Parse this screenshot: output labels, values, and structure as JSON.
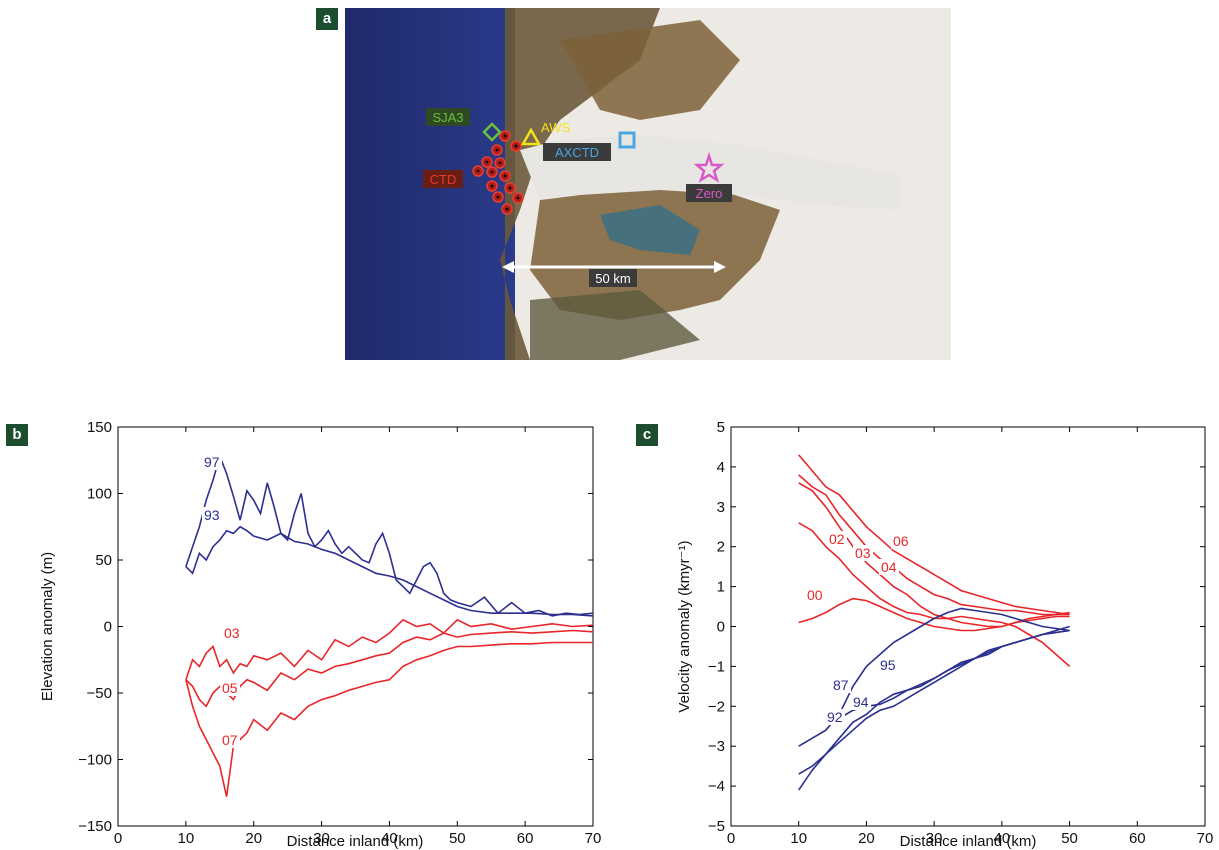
{
  "panels": {
    "a": "a",
    "b": "b",
    "c": "c"
  },
  "map": {
    "labels": {
      "sja3": "SJA3",
      "aws": "AWS",
      "axctd": "AXCTD",
      "ctd": "CTD",
      "zero": "Zero",
      "scale": "50 km"
    },
    "colors": {
      "sja3": "#6bbf3a",
      "aws": "#f2e21b",
      "axctd": "#4aa8e0",
      "ctd": "#e23a2a",
      "zero": "#d85ac8"
    }
  },
  "chart_data": [
    {
      "type": "line",
      "panel": "b",
      "xlabel": "Distance inland (km)",
      "ylabel": "Elevation anomaly (m)",
      "xlim": [
        0,
        70
      ],
      "ylim": [
        -150,
        150
      ],
      "xticks": [
        0,
        10,
        20,
        30,
        40,
        50,
        60,
        70
      ],
      "yticks": [
        -150,
        -100,
        -50,
        0,
        50,
        100,
        150
      ],
      "tick_labels_x": [
        "0",
        "10",
        "20",
        "30",
        "40",
        "50",
        "60",
        "70"
      ],
      "tick_labels_y": [
        "−150",
        "−100",
        "−50",
        "0",
        "50",
        "100",
        "150"
      ],
      "series": [
        {
          "name": "97",
          "color": "#2b2f8f",
          "x": [
            10,
            11,
            12,
            13,
            14,
            15,
            16,
            17,
            18,
            19,
            20,
            21,
            22,
            23,
            24,
            25,
            26,
            27,
            28,
            29,
            30,
            31,
            32,
            33,
            34,
            35,
            36,
            37,
            38,
            39,
            40,
            41,
            42,
            43,
            44,
            45,
            46,
            47,
            48,
            49,
            50,
            52,
            54,
            56,
            58,
            60,
            62,
            64,
            66,
            68,
            70
          ],
          "y": [
            45,
            60,
            75,
            95,
            110,
            128,
            115,
            98,
            80,
            102,
            95,
            85,
            108,
            90,
            70,
            65,
            85,
            100,
            70,
            60,
            65,
            72,
            62,
            55,
            60,
            55,
            50,
            48,
            62,
            70,
            55,
            35,
            30,
            25,
            35,
            45,
            48,
            40,
            25,
            20,
            18,
            15,
            22,
            10,
            18,
            10,
            12,
            8,
            10,
            9,
            10
          ]
        },
        {
          "name": "93",
          "color": "#2b2f8f",
          "x": [
            10,
            11,
            12,
            13,
            14,
            15,
            16,
            17,
            18,
            19,
            20,
            22,
            24,
            26,
            28,
            30,
            32,
            34,
            36,
            38,
            40,
            42,
            44,
            46,
            48,
            50,
            52,
            55,
            58,
            61,
            64,
            67,
            70
          ],
          "y": [
            45,
            40,
            55,
            50,
            60,
            65,
            72,
            70,
            75,
            72,
            68,
            65,
            70,
            64,
            62,
            58,
            55,
            50,
            45,
            40,
            38,
            35,
            30,
            25,
            20,
            15,
            12,
            10,
            10,
            10,
            9,
            9,
            8
          ]
        },
        {
          "name": "03",
          "color": "#e8262a",
          "x": [
            10,
            11,
            12,
            13,
            14,
            15,
            16,
            17,
            18,
            19,
            20,
            22,
            24,
            26,
            28,
            30,
            32,
            34,
            36,
            38,
            40,
            42,
            44,
            46,
            48,
            50,
            52,
            55,
            58,
            61,
            64,
            67,
            70
          ],
          "y": [
            -40,
            -25,
            -30,
            -20,
            -15,
            -30,
            -25,
            -35,
            -28,
            -30,
            -22,
            -25,
            -20,
            -30,
            -18,
            -25,
            -10,
            -15,
            -8,
            -12,
            -5,
            5,
            0,
            2,
            -5,
            5,
            0,
            2,
            -2,
            0,
            2,
            0,
            1
          ]
        },
        {
          "name": "05",
          "color": "#e8262a",
          "x": [
            10,
            11,
            12,
            13,
            14,
            15,
            16,
            17,
            18,
            19,
            20,
            22,
            24,
            26,
            28,
            30,
            32,
            34,
            36,
            38,
            40,
            42,
            44,
            46,
            48,
            50,
            52,
            55,
            58,
            61,
            64,
            67,
            70
          ],
          "y": [
            -40,
            -45,
            -55,
            -60,
            -50,
            -45,
            -50,
            -55,
            -45,
            -40,
            -42,
            -48,
            -35,
            -40,
            -32,
            -35,
            -30,
            -28,
            -25,
            -22,
            -20,
            -12,
            -8,
            -10,
            -5,
            -8,
            -6,
            -5,
            -4,
            -5,
            -4,
            -3,
            -4
          ]
        },
        {
          "name": "07",
          "color": "#e8262a",
          "x": [
            10,
            11,
            12,
            13,
            14,
            15,
            16,
            17,
            18,
            19,
            20,
            22,
            24,
            26,
            28,
            30,
            32,
            34,
            36,
            38,
            40,
            42,
            44,
            46,
            48,
            50,
            52,
            55,
            58,
            61,
            64,
            67,
            70
          ],
          "y": [
            -40,
            -60,
            -75,
            -85,
            -95,
            -105,
            -128,
            -90,
            -85,
            -80,
            -70,
            -78,
            -65,
            -70,
            -60,
            -55,
            -52,
            -48,
            -45,
            -42,
            -40,
            -30,
            -25,
            -22,
            -18,
            -15,
            -15,
            -14,
            -13,
            -13,
            -12,
            -12,
            -12
          ]
        }
      ],
      "annotations": [
        "97",
        "93",
        "03",
        "05",
        "07"
      ]
    },
    {
      "type": "line",
      "panel": "c",
      "xlabel": "Distance inland (km)",
      "ylabel": "Velocity anomaly (kmyr⁻¹)",
      "xlim": [
        0,
        70
      ],
      "ylim": [
        -5,
        5
      ],
      "xticks": [
        0,
        10,
        20,
        30,
        40,
        50,
        60,
        70
      ],
      "yticks": [
        -5,
        -4,
        -3,
        -2,
        -1,
        0,
        1,
        2,
        3,
        4,
        5
      ],
      "tick_labels_x": [
        "0",
        "10",
        "20",
        "30",
        "40",
        "50",
        "60",
        "70"
      ],
      "tick_labels_y": [
        "−5",
        "−4",
        "−3",
        "−2",
        "−1",
        "0",
        "1",
        "2",
        "3",
        "4",
        "5"
      ],
      "series": [
        {
          "name": "06",
          "color": "#e8262a",
          "x": [
            10,
            12,
            14,
            16,
            18,
            20,
            22,
            24,
            26,
            28,
            30,
            32,
            34,
            36,
            38,
            40,
            42,
            44,
            46,
            48,
            50
          ],
          "y": [
            4.3,
            3.9,
            3.5,
            3.3,
            2.9,
            2.5,
            2.2,
            1.9,
            1.7,
            1.5,
            1.3,
            1.1,
            0.9,
            0.8,
            0.7,
            0.6,
            0.5,
            0.45,
            0.4,
            0.35,
            0.3
          ]
        },
        {
          "name": "04",
          "color": "#e8262a",
          "x": [
            10,
            12,
            14,
            16,
            18,
            20,
            22,
            24,
            26,
            28,
            30,
            32,
            34,
            36,
            38,
            40,
            42,
            44,
            46,
            48,
            50
          ],
          "y": [
            3.8,
            3.5,
            3.3,
            2.8,
            2.4,
            2.0,
            1.7,
            1.5,
            1.2,
            1.0,
            0.8,
            0.7,
            0.55,
            0.5,
            0.45,
            0.4,
            0.4,
            0.35,
            0.3,
            0.3,
            0.35
          ]
        },
        {
          "name": "03",
          "color": "#e8262a",
          "x": [
            10,
            12,
            14,
            16,
            18,
            20,
            22,
            24,
            26,
            28,
            30,
            32,
            34,
            36,
            38,
            40,
            42,
            44,
            46,
            48,
            50
          ],
          "y": [
            2.6,
            2.4,
            2.0,
            1.7,
            1.3,
            1.0,
            0.7,
            0.5,
            0.35,
            0.3,
            0.2,
            0.2,
            0.25,
            0.2,
            0.15,
            0.1,
            0.0,
            -0.2,
            -0.4,
            -0.7,
            -1.0
          ]
        },
        {
          "name": "02",
          "color": "#e8262a",
          "x": [
            10,
            12,
            14,
            16,
            18,
            20,
            22,
            24,
            26,
            28,
            30,
            32,
            34,
            36,
            38,
            40,
            42,
            44,
            46,
            48,
            50
          ],
          "y": [
            3.6,
            3.4,
            3.0,
            2.5,
            2.0,
            1.6,
            1.3,
            1.0,
            0.8,
            0.5,
            0.3,
            0.2,
            0.1,
            0.05,
            0.0,
            0.0,
            0.1,
            0.2,
            0.25,
            0.3,
            0.3
          ]
        },
        {
          "name": "00",
          "color": "#e8262a",
          "x": [
            10,
            12,
            14,
            16,
            18,
            20,
            22,
            24,
            26,
            28,
            30,
            32,
            34,
            36,
            38,
            40,
            42,
            44,
            46,
            48,
            50
          ],
          "y": [
            0.1,
            0.2,
            0.35,
            0.55,
            0.7,
            0.65,
            0.5,
            0.35,
            0.2,
            0.1,
            0.0,
            -0.05,
            -0.1,
            -0.1,
            -0.05,
            0.0,
            0.1,
            0.15,
            0.2,
            0.25,
            0.25
          ]
        },
        {
          "name": "95",
          "color": "#2b2f8f",
          "x": [
            10,
            12,
            14,
            16,
            18,
            20,
            22,
            24,
            26,
            28,
            30,
            32,
            34,
            36,
            38,
            40,
            42,
            44,
            46,
            48,
            50
          ],
          "y": [
            -3.0,
            -2.8,
            -2.6,
            -2.2,
            -1.5,
            -1.0,
            -0.7,
            -0.4,
            -0.2,
            0.0,
            0.2,
            0.35,
            0.45,
            0.4,
            0.35,
            0.3,
            0.2,
            0.1,
            0.0,
            -0.05,
            -0.1
          ]
        },
        {
          "name": "94",
          "color": "#2b2f8f",
          "x": [
            10,
            12,
            14,
            16,
            18,
            20,
            22,
            24,
            26,
            28,
            30,
            32,
            34,
            36,
            38,
            40,
            42,
            44,
            46,
            48,
            50
          ],
          "y": [
            -4.1,
            -3.6,
            -3.2,
            -2.8,
            -2.4,
            -2.2,
            -1.9,
            -1.7,
            -1.6,
            -1.5,
            -1.3,
            -1.1,
            -0.9,
            -0.8,
            -0.6,
            -0.5,
            -0.4,
            -0.3,
            -0.2,
            -0.15,
            -0.1
          ]
        },
        {
          "name": "92",
          "color": "#2b2f8f",
          "x": [
            10,
            12,
            14,
            16,
            18,
            20,
            22,
            24,
            26,
            28,
            30,
            32,
            34,
            36,
            38,
            40,
            42,
            44,
            46,
            48,
            50
          ],
          "y": [
            -3.7,
            -3.5,
            -3.2,
            -2.9,
            -2.6,
            -2.3,
            -2.1,
            -2.0,
            -1.8,
            -1.6,
            -1.4,
            -1.2,
            -1.0,
            -0.8,
            -0.7,
            -0.5,
            -0.4,
            -0.3,
            -0.2,
            -0.1,
            0.0
          ]
        },
        {
          "name": "87",
          "color": "#2b2f8f",
          "x": [
            16,
            18,
            20,
            22,
            24,
            26,
            28,
            30,
            32,
            34,
            36,
            38,
            40,
            42,
            44,
            46,
            48,
            50
          ],
          "y": [
            -2.3,
            -2.1,
            -2.0,
            -1.95,
            -1.8,
            -1.6,
            -1.45,
            -1.3,
            -1.1,
            -0.95,
            -0.8,
            -0.65,
            -0.5,
            -0.4,
            -0.3,
            -0.2,
            -0.15,
            -0.1
          ]
        }
      ],
      "annotations": [
        "02",
        "03",
        "06",
        "04",
        "00",
        "95",
        "87",
        "94",
        "92"
      ]
    }
  ]
}
